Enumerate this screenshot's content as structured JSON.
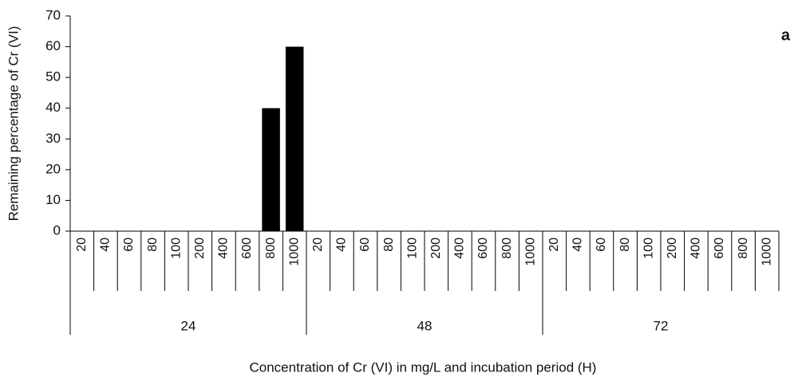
{
  "chart_data": {
    "type": "bar",
    "x_label": "Concentration of Cr (VI) in  mg/L and incubation period (H)",
    "y_label": "Remaining percentage of Cr (VI)",
    "annotation": "a",
    "categories": [
      "20",
      "40",
      "60",
      "80",
      "100",
      "200",
      "400",
      "600",
      "800",
      "1000",
      "20",
      "40",
      "60",
      "80",
      "100",
      "200",
      "400",
      "600",
      "800",
      "1000",
      "20",
      "40",
      "60",
      "80",
      "100",
      "200",
      "400",
      "600",
      "800",
      "1000"
    ],
    "groups": [
      "24",
      "48",
      "72"
    ],
    "values": [
      0,
      0,
      0,
      0,
      0,
      0,
      0,
      0,
      40,
      60,
      0,
      0,
      0,
      0,
      0,
      0,
      0,
      0,
      0,
      0,
      0,
      0,
      0,
      0,
      0,
      0,
      0,
      0,
      0,
      0
    ],
    "color": "#000000",
    "ylim": [
      0,
      70
    ],
    "yticks": [
      0,
      10,
      20,
      30,
      40,
      50,
      60,
      70
    ],
    "grid": false
  }
}
